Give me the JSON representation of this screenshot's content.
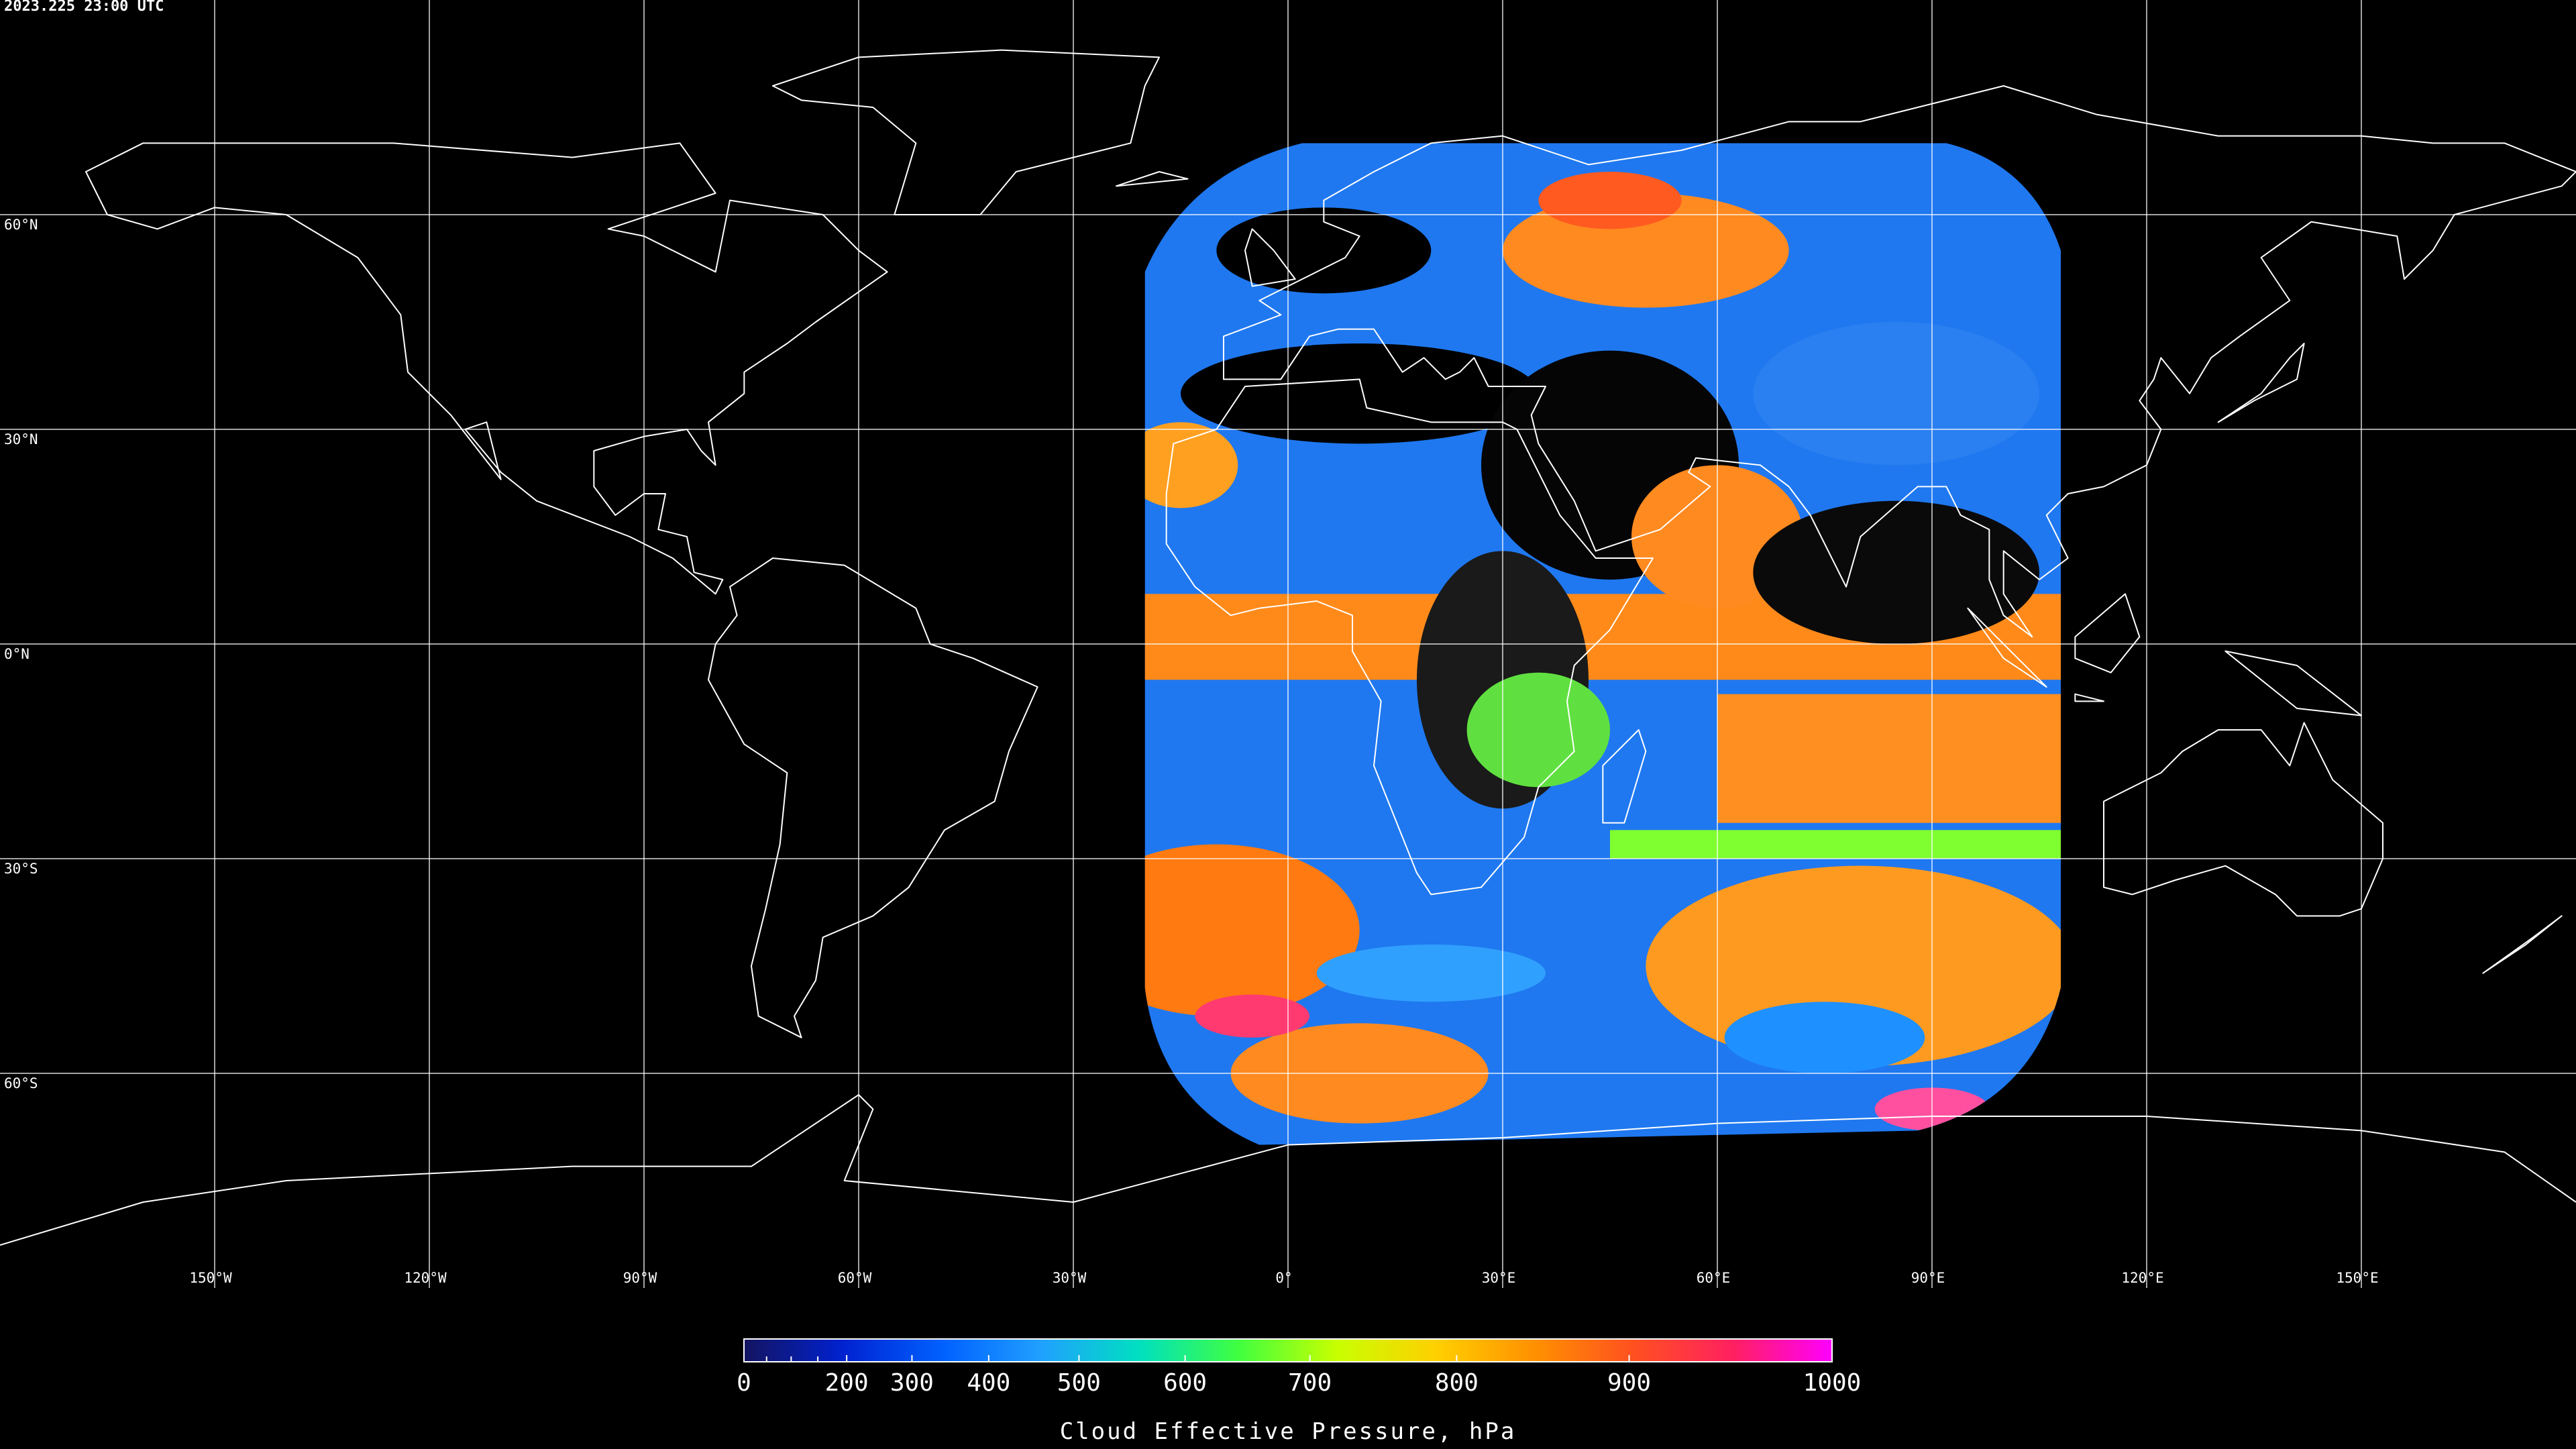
{
  "timestamp": "2023.225 23:00 UTC",
  "map": {
    "type": "map",
    "projection": "equirectangular",
    "grid": true,
    "xlim": [
      -180,
      180
    ],
    "ylim": [
      -90,
      90
    ],
    "xticks": [
      {
        "value": -150,
        "label": "150°W"
      },
      {
        "value": -120,
        "label": "120°W"
      },
      {
        "value": -90,
        "label": "90°W"
      },
      {
        "value": -60,
        "label": "60°W"
      },
      {
        "value": -30,
        "label": "30°W"
      },
      {
        "value": 0,
        "label": "0°"
      },
      {
        "value": 30,
        "label": "30°E"
      },
      {
        "value": 60,
        "label": "60°E"
      },
      {
        "value": 90,
        "label": "90°E"
      },
      {
        "value": 120,
        "label": "120°E"
      },
      {
        "value": 150,
        "label": "150°E"
      }
    ],
    "yticks": [
      {
        "value": 60,
        "label": "60°N"
      },
      {
        "value": 30,
        "label": "30°N"
      },
      {
        "value": 0,
        "label": "0°N"
      },
      {
        "value": -30,
        "label": "30°S"
      },
      {
        "value": -60,
        "label": "60°S"
      }
    ]
  },
  "colorbar": {
    "label": "Cloud Effective Pressure, hPa",
    "lim": [
      0,
      1000
    ],
    "ticks": [
      0,
      200,
      300,
      400,
      500,
      600,
      700,
      800,
      900,
      1000
    ],
    "minor_ticks": [
      50,
      100,
      150
    ],
    "colors": [
      "#141460",
      "#0022d0",
      "#0060ff",
      "#20a0ff",
      "#00e0c0",
      "#40ff40",
      "#c8ff00",
      "#ffd000",
      "#ff9000",
      "#ff5020",
      "#ff2060",
      "#ff00ff"
    ]
  }
}
